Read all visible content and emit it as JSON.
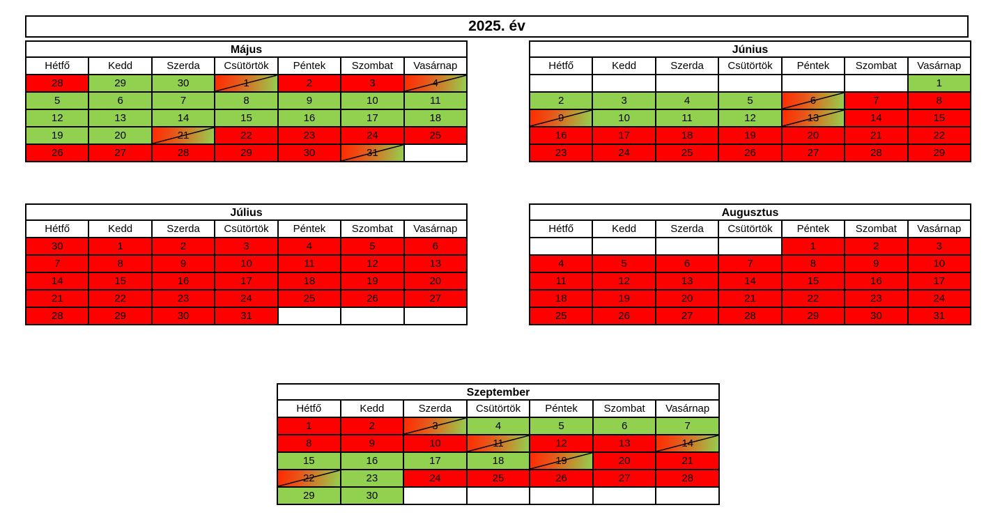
{
  "title": "2025. év",
  "day_names": [
    "Hétfő",
    "Kedd",
    "Szerda",
    "Csütörtök",
    "Péntek",
    "Szombat",
    "Vasárnap"
  ],
  "colors": {
    "red": "#ff0000",
    "green": "#92d050",
    "empty": "#ffffff"
  },
  "legend_states": {
    "r": "red",
    "g": "green",
    "m": "mixed / crossed out",
    "e": "empty"
  },
  "months": [
    {
      "name": "Május",
      "rows": [
        [
          {
            "d": "28",
            "s": "r"
          },
          {
            "d": "29",
            "s": "g"
          },
          {
            "d": "30",
            "s": "g"
          },
          {
            "d": "1",
            "s": "m"
          },
          {
            "d": "2",
            "s": "r"
          },
          {
            "d": "3",
            "s": "r"
          },
          {
            "d": "4",
            "s": "m"
          }
        ],
        [
          {
            "d": "5",
            "s": "g"
          },
          {
            "d": "6",
            "s": "g"
          },
          {
            "d": "7",
            "s": "g"
          },
          {
            "d": "8",
            "s": "g"
          },
          {
            "d": "9",
            "s": "g"
          },
          {
            "d": "10",
            "s": "g"
          },
          {
            "d": "11",
            "s": "g"
          }
        ],
        [
          {
            "d": "12",
            "s": "g"
          },
          {
            "d": "13",
            "s": "g"
          },
          {
            "d": "14",
            "s": "g"
          },
          {
            "d": "15",
            "s": "g"
          },
          {
            "d": "16",
            "s": "g"
          },
          {
            "d": "17",
            "s": "g"
          },
          {
            "d": "18",
            "s": "g"
          }
        ],
        [
          {
            "d": "19",
            "s": "g"
          },
          {
            "d": "20",
            "s": "g"
          },
          {
            "d": "21",
            "s": "m"
          },
          {
            "d": "22",
            "s": "r"
          },
          {
            "d": "23",
            "s": "r"
          },
          {
            "d": "24",
            "s": "r"
          },
          {
            "d": "25",
            "s": "r"
          }
        ],
        [
          {
            "d": "26",
            "s": "r"
          },
          {
            "d": "27",
            "s": "r"
          },
          {
            "d": "28",
            "s": "r"
          },
          {
            "d": "29",
            "s": "r"
          },
          {
            "d": "30",
            "s": "r"
          },
          {
            "d": "31",
            "s": "m"
          },
          {
            "d": "",
            "s": "e"
          }
        ]
      ]
    },
    {
      "name": "Június",
      "rows": [
        [
          {
            "d": "",
            "s": "e"
          },
          {
            "d": "",
            "s": "e"
          },
          {
            "d": "",
            "s": "e"
          },
          {
            "d": "",
            "s": "e"
          },
          {
            "d": "",
            "s": "e"
          },
          {
            "d": "",
            "s": "e"
          },
          {
            "d": "1",
            "s": "g"
          }
        ],
        [
          {
            "d": "2",
            "s": "g"
          },
          {
            "d": "3",
            "s": "g"
          },
          {
            "d": "4",
            "s": "g"
          },
          {
            "d": "5",
            "s": "g"
          },
          {
            "d": "6",
            "s": "m"
          },
          {
            "d": "7",
            "s": "r"
          },
          {
            "d": "8",
            "s": "r"
          }
        ],
        [
          {
            "d": "9",
            "s": "m"
          },
          {
            "d": "10",
            "s": "g"
          },
          {
            "d": "11",
            "s": "g"
          },
          {
            "d": "12",
            "s": "g"
          },
          {
            "d": "13",
            "s": "m"
          },
          {
            "d": "14",
            "s": "r"
          },
          {
            "d": "15",
            "s": "r"
          }
        ],
        [
          {
            "d": "16",
            "s": "r"
          },
          {
            "d": "17",
            "s": "r"
          },
          {
            "d": "18",
            "s": "r"
          },
          {
            "d": "19",
            "s": "r"
          },
          {
            "d": "20",
            "s": "r"
          },
          {
            "d": "21",
            "s": "r"
          },
          {
            "d": "22",
            "s": "r"
          }
        ],
        [
          {
            "d": "23",
            "s": "r"
          },
          {
            "d": "24",
            "s": "r"
          },
          {
            "d": "25",
            "s": "r"
          },
          {
            "d": "26",
            "s": "r"
          },
          {
            "d": "27",
            "s": "r"
          },
          {
            "d": "28",
            "s": "r"
          },
          {
            "d": "29",
            "s": "r"
          }
        ]
      ]
    },
    {
      "name": "Július",
      "rows": [
        [
          {
            "d": "30",
            "s": "r"
          },
          {
            "d": "1",
            "s": "r"
          },
          {
            "d": "2",
            "s": "r"
          },
          {
            "d": "3",
            "s": "r"
          },
          {
            "d": "4",
            "s": "r"
          },
          {
            "d": "5",
            "s": "r"
          },
          {
            "d": "6",
            "s": "r"
          }
        ],
        [
          {
            "d": "7",
            "s": "r"
          },
          {
            "d": "8",
            "s": "r"
          },
          {
            "d": "9",
            "s": "r"
          },
          {
            "d": "10",
            "s": "r"
          },
          {
            "d": "11",
            "s": "r"
          },
          {
            "d": "12",
            "s": "r"
          },
          {
            "d": "13",
            "s": "r"
          }
        ],
        [
          {
            "d": "14",
            "s": "r"
          },
          {
            "d": "15",
            "s": "r"
          },
          {
            "d": "16",
            "s": "r"
          },
          {
            "d": "17",
            "s": "r"
          },
          {
            "d": "18",
            "s": "r"
          },
          {
            "d": "19",
            "s": "r"
          },
          {
            "d": "20",
            "s": "r"
          }
        ],
        [
          {
            "d": "21",
            "s": "r"
          },
          {
            "d": "22",
            "s": "r"
          },
          {
            "d": "23",
            "s": "r"
          },
          {
            "d": "24",
            "s": "r"
          },
          {
            "d": "25",
            "s": "r"
          },
          {
            "d": "26",
            "s": "r"
          },
          {
            "d": "27",
            "s": "r"
          }
        ],
        [
          {
            "d": "28",
            "s": "r"
          },
          {
            "d": "29",
            "s": "r"
          },
          {
            "d": "30",
            "s": "r"
          },
          {
            "d": "31",
            "s": "r"
          },
          {
            "d": "",
            "s": "e"
          },
          {
            "d": "",
            "s": "e"
          },
          {
            "d": "",
            "s": "e"
          }
        ]
      ]
    },
    {
      "name": "Augusztus",
      "rows": [
        [
          {
            "d": "",
            "s": "e"
          },
          {
            "d": "",
            "s": "e"
          },
          {
            "d": "",
            "s": "e"
          },
          {
            "d": "",
            "s": "e"
          },
          {
            "d": "1",
            "s": "r"
          },
          {
            "d": "2",
            "s": "r"
          },
          {
            "d": "3",
            "s": "r"
          }
        ],
        [
          {
            "d": "4",
            "s": "r"
          },
          {
            "d": "5",
            "s": "r"
          },
          {
            "d": "6",
            "s": "r"
          },
          {
            "d": "7",
            "s": "r"
          },
          {
            "d": "8",
            "s": "r"
          },
          {
            "d": "9",
            "s": "r"
          },
          {
            "d": "10",
            "s": "r"
          }
        ],
        [
          {
            "d": "11",
            "s": "r"
          },
          {
            "d": "12",
            "s": "r"
          },
          {
            "d": "13",
            "s": "r"
          },
          {
            "d": "14",
            "s": "r"
          },
          {
            "d": "15",
            "s": "r"
          },
          {
            "d": "16",
            "s": "r"
          },
          {
            "d": "17",
            "s": "r"
          }
        ],
        [
          {
            "d": "18",
            "s": "r"
          },
          {
            "d": "19",
            "s": "r"
          },
          {
            "d": "20",
            "s": "r"
          },
          {
            "d": "21",
            "s": "r"
          },
          {
            "d": "22",
            "s": "r"
          },
          {
            "d": "23",
            "s": "r"
          },
          {
            "d": "24",
            "s": "r"
          }
        ],
        [
          {
            "d": "25",
            "s": "r"
          },
          {
            "d": "26",
            "s": "r"
          },
          {
            "d": "27",
            "s": "r"
          },
          {
            "d": "28",
            "s": "r"
          },
          {
            "d": "29",
            "s": "r"
          },
          {
            "d": "30",
            "s": "r"
          },
          {
            "d": "31",
            "s": "r"
          }
        ]
      ]
    },
    {
      "name": "Szeptember",
      "rows": [
        [
          {
            "d": "1",
            "s": "r"
          },
          {
            "d": "2",
            "s": "r"
          },
          {
            "d": "3",
            "s": "m"
          },
          {
            "d": "4",
            "s": "g"
          },
          {
            "d": "5",
            "s": "g"
          },
          {
            "d": "6",
            "s": "g"
          },
          {
            "d": "7",
            "s": "g"
          }
        ],
        [
          {
            "d": "8",
            "s": "r"
          },
          {
            "d": "9",
            "s": "r"
          },
          {
            "d": "10",
            "s": "r"
          },
          {
            "d": "11",
            "s": "m"
          },
          {
            "d": "12",
            "s": "r"
          },
          {
            "d": "13",
            "s": "r"
          },
          {
            "d": "14",
            "s": "m"
          }
        ],
        [
          {
            "d": "15",
            "s": "g"
          },
          {
            "d": "16",
            "s": "g"
          },
          {
            "d": "17",
            "s": "g"
          },
          {
            "d": "18",
            "s": "g"
          },
          {
            "d": "19",
            "s": "m"
          },
          {
            "d": "20",
            "s": "r"
          },
          {
            "d": "21",
            "s": "r"
          }
        ],
        [
          {
            "d": "22",
            "s": "m"
          },
          {
            "d": "23",
            "s": "g"
          },
          {
            "d": "24",
            "s": "r"
          },
          {
            "d": "25",
            "s": "r"
          },
          {
            "d": "26",
            "s": "r"
          },
          {
            "d": "27",
            "s": "r"
          },
          {
            "d": "28",
            "s": "r"
          }
        ],
        [
          {
            "d": "29",
            "s": "g"
          },
          {
            "d": "30",
            "s": "g"
          },
          {
            "d": "",
            "s": "e"
          },
          {
            "d": "",
            "s": "e"
          },
          {
            "d": "",
            "s": "e"
          },
          {
            "d": "",
            "s": "e"
          },
          {
            "d": "",
            "s": "e"
          }
        ]
      ]
    }
  ]
}
